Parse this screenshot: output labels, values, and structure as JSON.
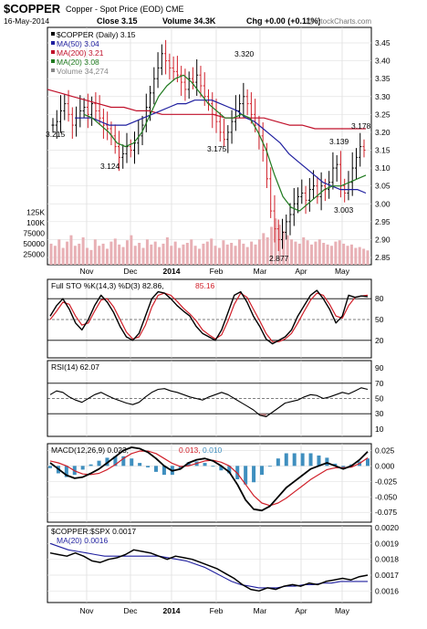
{
  "header": {
    "symbol": "$COPPER",
    "name": "Copper - Spot Price (EOD)",
    "exchange": "CME",
    "date": "16-May-2014",
    "close_label": "Close",
    "close": "3.15",
    "volume_label": "Volume",
    "volume": "34.3K",
    "chg_label": "Chg",
    "chg": "+0.00 (+0.11%)",
    "watermark": "@ StockCharts.com"
  },
  "x_labels": [
    "Nov",
    "Dec",
    "2014",
    "Feb",
    "Mar",
    "Apr",
    "May"
  ],
  "price_panel": {
    "legend": [
      {
        "label": "$COPPER (Daily)",
        "value": "3.15",
        "color": "#000000"
      },
      {
        "label": "MA(50)",
        "value": "3.04",
        "color": "#1f1f9f"
      },
      {
        "label": "MA(200)",
        "value": "3.21",
        "color": "#c0102a"
      },
      {
        "label": "MA(20)",
        "value": "3.08",
        "color": "#1f7a1f"
      },
      {
        "label": "Volume",
        "value": "34,274",
        "color": "#888888"
      }
    ],
    "y_ticks": [
      "3.45",
      "3.40",
      "3.35",
      "3.30",
      "3.25",
      "3.20",
      "3.15",
      "3.10",
      "3.05",
      "3.00",
      "2.95",
      "2.90",
      "2.85"
    ],
    "vol_ticks": [
      "125K",
      "100K",
      "75000",
      "50000",
      "25000"
    ],
    "annotations": [
      "3.215",
      "3.124",
      "3.320",
      "3.175",
      "2.877",
      "3.139",
      "3.178",
      "3.003"
    ]
  },
  "sto_panel": {
    "label": "Full STO %K(14,3) %D(3)",
    "k_value": "82.86",
    "d_value": "85.16",
    "y_ticks": [
      "80",
      "50",
      "20"
    ]
  },
  "rsi_panel": {
    "label": "RSI(14)",
    "value": "62.07",
    "y_ticks": [
      "90",
      "70",
      "50",
      "30",
      "10"
    ]
  },
  "macd_panel": {
    "label": "MACD(12,26,9)",
    "macd": "0.023",
    "signal": "0.013",
    "hist": "0.010",
    "y_ticks": [
      "0.025",
      "0.000",
      "-0.025",
      "-0.050",
      "-0.075"
    ]
  },
  "ratio_panel": {
    "label": "$COPPER:$SPX",
    "value": "0.0017",
    "ma_label": "MA(20)",
    "ma_value": "0.0016",
    "y_ticks": [
      "0.0020",
      "0.0019",
      "0.0018",
      "0.0017",
      "0.0016"
    ]
  },
  "colors": {
    "up": "#000000",
    "down": "#d0202a",
    "ma50": "#1f1f9f",
    "ma200": "#c0102a",
    "ma20": "#1f7a1f",
    "macd_hist": "#3f8fbf"
  },
  "chart_data": {
    "type": "line",
    "series": [
      {
        "name": "$COPPER (Daily)",
        "values": [
          3.22,
          3.23,
          3.26,
          3.28,
          3.25,
          3.22,
          3.24,
          3.26,
          3.27,
          3.25,
          3.28,
          3.26,
          3.24,
          3.22,
          3.21,
          3.19,
          3.16,
          3.13,
          3.14,
          3.16,
          3.15,
          3.17,
          3.19,
          3.22,
          3.27,
          3.31,
          3.35,
          3.38,
          3.42,
          3.4,
          3.38,
          3.37,
          3.36,
          3.34,
          3.32,
          3.35,
          3.34,
          3.36,
          3.33,
          3.3,
          3.28,
          3.25,
          3.23,
          3.2,
          3.18,
          3.2,
          3.23,
          3.26,
          3.28,
          3.3,
          3.28,
          3.25,
          3.22,
          3.19,
          3.15,
          3.07,
          2.98,
          2.93,
          2.9,
          2.92,
          2.95,
          2.97,
          3.0,
          3.02,
          3.03,
          3.01,
          3.04,
          3.05,
          3.02,
          3.05,
          3.04,
          3.06,
          3.1,
          3.11,
          3.05,
          3.03,
          3.06,
          3.1,
          3.13,
          3.16,
          3.15
        ]
      },
      {
        "name": "MA(50)",
        "values": [
          3.24,
          3.24,
          3.24,
          3.23,
          3.22,
          3.22,
          3.22,
          3.23,
          3.24,
          3.25,
          3.26,
          3.27,
          3.28,
          3.28,
          3.29,
          3.29,
          3.29,
          3.28,
          3.27,
          3.26,
          3.24,
          3.23,
          3.21,
          3.19,
          3.17,
          3.14,
          3.12,
          3.1,
          3.08,
          3.06,
          3.05,
          3.04,
          3.04,
          3.04,
          3.03
        ]
      },
      {
        "name": "MA(200)",
        "values": [
          3.32,
          3.31,
          3.3,
          3.29,
          3.28,
          3.27,
          3.27,
          3.26,
          3.26,
          3.25,
          3.25,
          3.25,
          3.25,
          3.25,
          3.24,
          3.24,
          3.24,
          3.24,
          3.23,
          3.22,
          3.22,
          3.21,
          3.21,
          3.21,
          3.21,
          3.21
        ]
      },
      {
        "name": "MA(20)",
        "values": [
          3.25,
          3.24,
          3.22,
          3.2,
          3.17,
          3.16,
          3.17,
          3.2,
          3.25,
          3.3,
          3.33,
          3.35,
          3.36,
          3.34,
          3.31,
          3.28,
          3.26,
          3.24,
          3.24,
          3.25,
          3.24,
          3.2,
          3.15,
          3.08,
          3.02,
          2.99,
          2.98,
          3.0,
          3.02,
          3.04,
          3.05,
          3.05,
          3.06,
          3.07,
          3.08
        ]
      },
      {
        "name": "Volume",
        "values": [
          50,
          45,
          60,
          40,
          55,
          70,
          45,
          50,
          65,
          40,
          35,
          60,
          45,
          50,
          38,
          55,
          62,
          48,
          42,
          58,
          70,
          45,
          52,
          40,
          60,
          48,
          55,
          42,
          50,
          65,
          45,
          55,
          40,
          48,
          52,
          60,
          45,
          38,
          50,
          55,
          62,
          45,
          40,
          58,
          48,
          52,
          45,
          60,
          50,
          42,
          55,
          48,
          60,
          75,
          65,
          90,
          110,
          95,
          80,
          70,
          60,
          55,
          50,
          65,
          58,
          48,
          55,
          60,
          52,
          48,
          45,
          55,
          58,
          50,
          45,
          48,
          40,
          42,
          38,
          34
        ]
      },
      {
        "name": "Full STO %K(14,3)",
        "values": [
          55,
          70,
          80,
          65,
          45,
          35,
          50,
          70,
          85,
          75,
          60,
          40,
          25,
          20,
          30,
          55,
          80,
          90,
          88,
          80,
          70,
          62,
          55,
          40,
          30,
          25,
          20,
          35,
          60,
          85,
          90,
          75,
          55,
          40,
          22,
          15,
          20,
          25,
          35,
          55,
          70,
          85,
          92,
          80,
          65,
          45,
          55,
          85,
          82,
          84,
          83
        ]
      },
      {
        "name": "%D(3)",
        "values": [
          50,
          62,
          75,
          72,
          55,
          42,
          45,
          62,
          78,
          80,
          68,
          50,
          32,
          22,
          25,
          42,
          68,
          85,
          88,
          85,
          76,
          66,
          58,
          48,
          35,
          28,
          22,
          28,
          48,
          72,
          88,
          82,
          65,
          48,
          30,
          18,
          18,
          22,
          30,
          45,
          62,
          78,
          88,
          85,
          72,
          55,
          52,
          70,
          82,
          84,
          85
        ]
      },
      {
        "name": "RSI(14)",
        "values": [
          55,
          60,
          58,
          52,
          48,
          45,
          50,
          55,
          58,
          54,
          50,
          47,
          44,
          42,
          45,
          52,
          58,
          62,
          63,
          60,
          58,
          55,
          52,
          50,
          48,
          52,
          55,
          58,
          55,
          50,
          45,
          40,
          35,
          28,
          26,
          32,
          38,
          44,
          46,
          48,
          52,
          55,
          54,
          50,
          52,
          55,
          58,
          56,
          60,
          64,
          62
        ]
      },
      {
        "name": "MACD(12,26,9)",
        "values": [
          0.005,
          -0.005,
          -0.015,
          -0.02,
          -0.018,
          -0.012,
          -0.005,
          0.005,
          0.015,
          0.025,
          0.03,
          0.028,
          0.022,
          0.012,
          0.0,
          -0.008,
          -0.005,
          0.005,
          0.01,
          0.012,
          0.008,
          0.0,
          -0.01,
          -0.03,
          -0.055,
          -0.07,
          -0.072,
          -0.065,
          -0.05,
          -0.035,
          -0.025,
          -0.015,
          -0.005,
          0.0,
          0.005,
          0.0,
          -0.005,
          0.0,
          0.01,
          0.023
        ]
      },
      {
        "name": "Signal",
        "values": [
          0.008,
          0.005,
          0.0,
          -0.008,
          -0.013,
          -0.014,
          -0.012,
          -0.006,
          0.002,
          0.012,
          0.02,
          0.024,
          0.024,
          0.02,
          0.012,
          0.004,
          -0.001,
          0.0,
          0.004,
          0.008,
          0.009,
          0.006,
          0.0,
          -0.012,
          -0.03,
          -0.048,
          -0.06,
          -0.064,
          -0.06,
          -0.052,
          -0.042,
          -0.032,
          -0.022,
          -0.014,
          -0.006,
          -0.003,
          -0.003,
          -0.002,
          0.004,
          0.013
        ]
      },
      {
        "name": "$COPPER:$SPX",
        "values": [
          0.00184,
          0.00183,
          0.00182,
          0.00184,
          0.00182,
          0.00179,
          0.00178,
          0.0018,
          0.00181,
          0.00183,
          0.00186,
          0.00185,
          0.00184,
          0.00182,
          0.0018,
          0.00182,
          0.00181,
          0.0018,
          0.00178,
          0.00176,
          0.00174,
          0.00171,
          0.00168,
          0.00164,
          0.00161,
          0.0016,
          0.00162,
          0.00161,
          0.00163,
          0.00164,
          0.00163,
          0.00165,
          0.00164,
          0.00166,
          0.00167,
          0.00168,
          0.00167,
          0.00169,
          0.0017
        ]
      },
      {
        "name": "MA(20)",
        "values": [
          0.0019,
          0.00188,
          0.00186,
          0.00185,
          0.00184,
          0.00183,
          0.00182,
          0.00182,
          0.00182,
          0.00182,
          0.00182,
          0.00182,
          0.00182,
          0.00181,
          0.0018,
          0.00179,
          0.00177,
          0.00175,
          0.00172,
          0.00169,
          0.00166,
          0.00164,
          0.00163,
          0.00162,
          0.00162,
          0.00162,
          0.00163,
          0.00163,
          0.00164,
          0.00164,
          0.00165,
          0.00165,
          0.00166,
          0.00166,
          0.00166,
          0.00166
        ]
      }
    ]
  }
}
